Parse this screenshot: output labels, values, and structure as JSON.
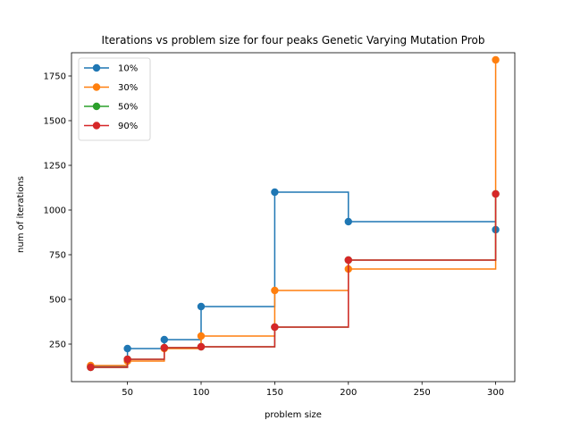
{
  "chart_data": {
    "type": "line",
    "step": "post",
    "title": "Iterations vs problem size for four peaks Genetic Varying Mutation Prob",
    "xlabel": "problem size",
    "ylabel": "num of iterations",
    "xlim": [
      12,
      313
    ],
    "ylim": [
      40,
      1880
    ],
    "xticks": [
      50,
      100,
      150,
      200,
      250,
      300
    ],
    "yticks": [
      250,
      500,
      750,
      1000,
      1250,
      1500,
      1750
    ],
    "x": [
      25,
      50,
      75,
      100,
      150,
      200,
      300
    ],
    "legend": {
      "loc": "upper left"
    },
    "series": [
      {
        "name": "10%",
        "color": "#1f77b4",
        "values": [
          125,
          225,
          275,
          460,
          1100,
          935,
          890
        ]
      },
      {
        "name": "30%",
        "color": "#ff7f0e",
        "values": [
          130,
          155,
          225,
          295,
          550,
          670,
          1840
        ]
      },
      {
        "name": "50%",
        "color": "#2ca02c",
        "values": [
          120,
          165,
          230,
          235,
          345,
          720,
          1090
        ]
      },
      {
        "name": "90%",
        "color": "#d62728",
        "values": [
          120,
          165,
          230,
          235,
          345,
          720,
          1090
        ]
      }
    ]
  }
}
